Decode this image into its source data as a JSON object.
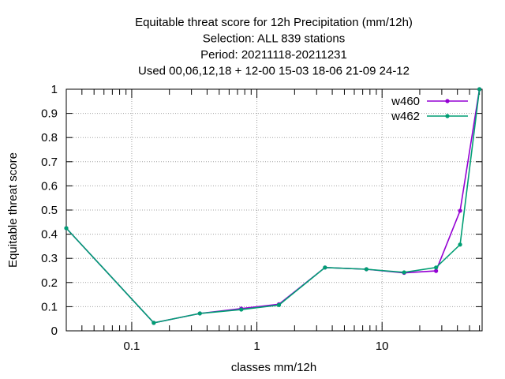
{
  "chart_data": {
    "type": "line",
    "title": [
      "Equitable threat score  for 12h Precipitation (mm/12h)",
      "Selection: ALL    839 stations",
      "Period: 20211118-20211231",
      "Used  00,06,12,18  + 12-00 15-03 18-06 21-09 24-12"
    ],
    "xlabel": "classes mm/12h",
    "ylabel": "Equitable threat score",
    "xscale": "log",
    "xlim": [
      0.03,
      63
    ],
    "ylim": [
      0,
      1
    ],
    "xticks": [
      {
        "value": 0.1,
        "label": "0.1"
      },
      {
        "value": 1,
        "label": "1"
      },
      {
        "value": 10,
        "label": "10"
      }
    ],
    "yticks": [
      {
        "value": 0,
        "label": "0"
      },
      {
        "value": 0.1,
        "label": "0.1"
      },
      {
        "value": 0.2,
        "label": "0.2"
      },
      {
        "value": 0.3,
        "label": "0.3"
      },
      {
        "value": 0.4,
        "label": "0.4"
      },
      {
        "value": 0.5,
        "label": "0.5"
      },
      {
        "value": 0.6,
        "label": "0.6"
      },
      {
        "value": 0.7,
        "label": "0.7"
      },
      {
        "value": 0.8,
        "label": "0.8"
      },
      {
        "value": 0.9,
        "label": "0.9"
      },
      {
        "value": 1,
        "label": "1"
      }
    ],
    "grid": true,
    "legend_position": "top-right",
    "series": [
      {
        "name": "w460",
        "color": "#9400d3",
        "x": [
          0.03,
          0.15,
          0.35,
          0.75,
          1.5,
          3.5,
          7.5,
          15,
          27,
          42,
          60
        ],
        "y": [
          0.425,
          0.033,
          0.072,
          0.092,
          0.11,
          0.262,
          0.255,
          0.24,
          0.248,
          0.497,
          1.0
        ]
      },
      {
        "name": "w462",
        "color": "#009e73",
        "x": [
          0.03,
          0.15,
          0.35,
          0.75,
          1.5,
          3.5,
          7.5,
          15,
          27,
          42,
          60
        ],
        "y": [
          0.425,
          0.033,
          0.072,
          0.088,
          0.107,
          0.262,
          0.255,
          0.242,
          0.262,
          0.357,
          1.0
        ]
      }
    ]
  }
}
